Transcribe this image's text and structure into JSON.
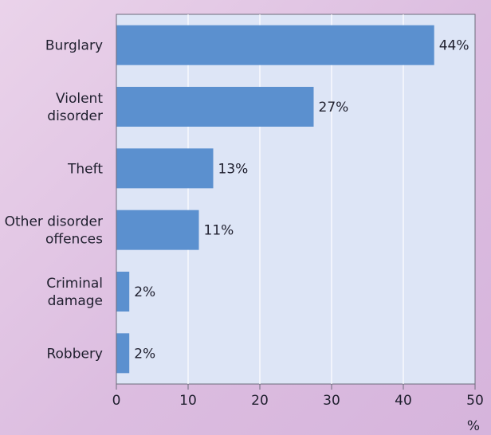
{
  "chart_data": {
    "type": "bar",
    "orientation": "horizontal",
    "categories": [
      [
        "Burglary"
      ],
      [
        "Violent",
        "disorder"
      ],
      [
        "Theft"
      ],
      [
        "Other disorder",
        "offences"
      ],
      [
        "Criminal",
        "damage"
      ],
      [
        "Robbery"
      ]
    ],
    "values": [
      44.3,
      27.5,
      13.5,
      11.5,
      1.8,
      1.8
    ],
    "data_labels": [
      "44%",
      "27%",
      "13%",
      "11%",
      "2%",
      "2%"
    ],
    "xlim": [
      0,
      50
    ],
    "xticks": [
      0,
      10,
      20,
      30,
      40,
      50
    ],
    "xlabel": "%",
    "grid": true,
    "colors": {
      "bar": "#5b90cf",
      "plot_background": "#dde5f6",
      "grid": "#ffffff",
      "axis": "#6b6b7a"
    }
  }
}
